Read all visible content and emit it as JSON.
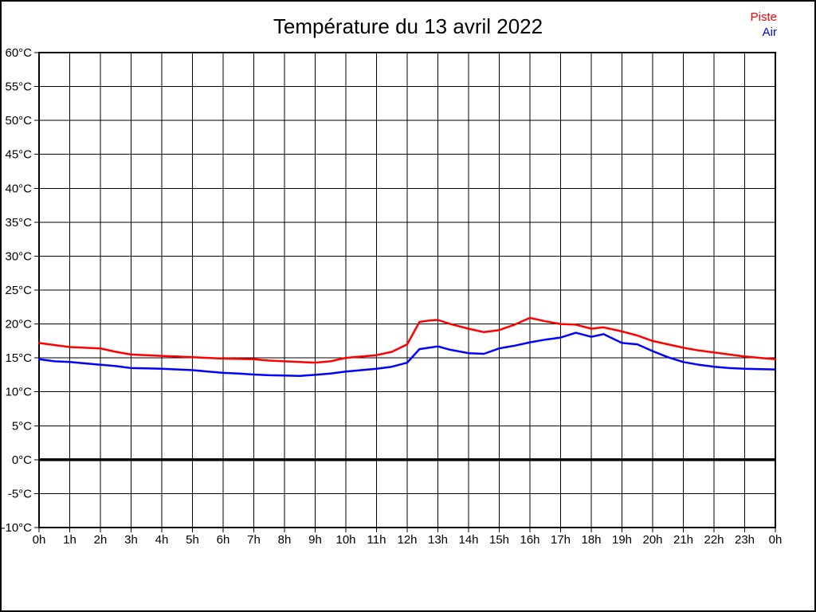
{
  "title": "Température du 13 avril 2022",
  "legend": {
    "items": [
      {
        "label": "Piste",
        "color": "#ff0000"
      },
      {
        "label": "Air",
        "color": "#0000ff"
      }
    ],
    "position": "top-right"
  },
  "colors": {
    "background": "#ffffff",
    "grid": "#000000",
    "border": "#000000",
    "zero_line": "#000000",
    "piste_line": "#ff0000",
    "air_line": "#0000ff"
  },
  "chart_data": {
    "type": "line",
    "title": "Température du 13 avril 2022",
    "xlabel": "",
    "ylabel": "",
    "xlim": [
      0,
      24
    ],
    "ylim": [
      -10,
      60
    ],
    "y_tick_step": 5,
    "grid": true,
    "zero_line_bold": true,
    "legend_position": "top-right",
    "x_tick_labels": [
      "0h",
      "1h",
      "2h",
      "3h",
      "4h",
      "5h",
      "6h",
      "7h",
      "8h",
      "9h",
      "10h",
      "11h",
      "12h",
      "13h",
      "14h",
      "15h",
      "16h",
      "17h",
      "18h",
      "19h",
      "20h",
      "21h",
      "22h",
      "23h",
      "0h"
    ],
    "y_tick_labels": [
      "60°C",
      "55°C",
      "50°C",
      "45°C",
      "40°C",
      "35°C",
      "30°C",
      "25°C",
      "20°C",
      "15°C",
      "10°C",
      "5°C",
      "0°C",
      "-5°C",
      "-10°C"
    ],
    "x": [
      0,
      0.5,
      1,
      1.5,
      2,
      2.5,
      3,
      3.5,
      4,
      4.5,
      5,
      5.5,
      6,
      6.5,
      7,
      7.5,
      8,
      8.5,
      9,
      9.5,
      10,
      10.5,
      11,
      11.5,
      12,
      12.4,
      12.7,
      13,
      13.4,
      14,
      14.5,
      15,
      15.5,
      16,
      16.5,
      17,
      17.5,
      18,
      18.4,
      19,
      19.5,
      20,
      20.5,
      21,
      21.5,
      22,
      22.5,
      23,
      23.5,
      24
    ],
    "series": [
      {
        "name": "Piste",
        "color": "#ff0000",
        "values": [
          17.2,
          16.9,
          16.6,
          16.5,
          16.4,
          15.9,
          15.5,
          15.4,
          15.3,
          15.2,
          15.1,
          15.0,
          14.9,
          14.85,
          14.8,
          14.6,
          14.5,
          14.4,
          14.3,
          14.5,
          15.0,
          15.2,
          15.4,
          15.9,
          17.0,
          20.3,
          20.5,
          20.6,
          20.0,
          19.3,
          18.8,
          19.1,
          19.9,
          20.9,
          20.4,
          20.0,
          19.9,
          19.3,
          19.5,
          18.9,
          18.3,
          17.5,
          17.0,
          16.5,
          16.1,
          15.8,
          15.5,
          15.2,
          15.0,
          14.8
        ]
      },
      {
        "name": "Air",
        "color": "#0000ff",
        "values": [
          14.8,
          14.5,
          14.4,
          14.2,
          14.0,
          13.8,
          13.5,
          13.45,
          13.4,
          13.3,
          13.2,
          13.0,
          12.8,
          12.7,
          12.55,
          12.45,
          12.4,
          12.35,
          12.5,
          12.7,
          13.0,
          13.2,
          13.4,
          13.7,
          14.3,
          16.3,
          16.5,
          16.7,
          16.2,
          15.7,
          15.6,
          16.4,
          16.8,
          17.3,
          17.7,
          18.0,
          18.7,
          18.1,
          18.5,
          17.2,
          17.0,
          16.0,
          15.1,
          14.4,
          14.0,
          13.7,
          13.5,
          13.4,
          13.35,
          13.3
        ]
      }
    ]
  }
}
